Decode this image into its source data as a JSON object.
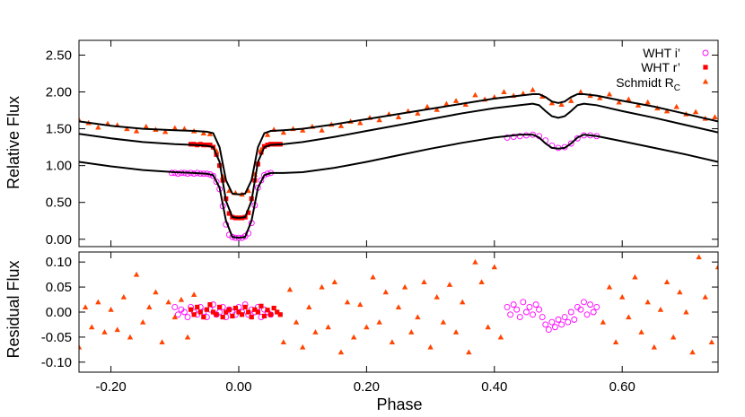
{
  "chart_data": [
    {
      "type": "scatter",
      "panel": "top",
      "ylabel": "Relative Flux",
      "xlim": [
        -0.25,
        0.75
      ],
      "ylim": [
        -0.1,
        2.7
      ],
      "yticks": [
        "0.00",
        "0.50",
        "1.00",
        "1.50",
        "2.00",
        "2.50"
      ],
      "ytick_values": [
        0,
        0.5,
        1.0,
        1.5,
        2.0,
        2.5
      ],
      "grid": false,
      "legend_position": "top-right",
      "legend": [
        {
          "label": "WHT i’",
          "marker": "open-circle",
          "color": "#ff00ff"
        },
        {
          "label": "WHT r’",
          "marker": "filled-square",
          "color": "#ff0000"
        },
        {
          "label": "Schmidt R",
          "sub": "C",
          "marker": "filled-triangle",
          "color": "#ff4500"
        }
      ],
      "model_curves": [
        {
          "name": "Schmidt RC model",
          "color": "#000000",
          "x": [
            -0.25,
            -0.2,
            -0.15,
            -0.1,
            -0.07,
            -0.05,
            -0.04,
            -0.03,
            -0.02,
            -0.01,
            0.0,
            0.01,
            0.02,
            0.03,
            0.04,
            0.05,
            0.07,
            0.1,
            0.15,
            0.2,
            0.25,
            0.3,
            0.35,
            0.4,
            0.44,
            0.46,
            0.47,
            0.48,
            0.49,
            0.5,
            0.51,
            0.52,
            0.53,
            0.54,
            0.56,
            0.6,
            0.65,
            0.7,
            0.75
          ],
          "y": [
            1.6,
            1.54,
            1.5,
            1.48,
            1.47,
            1.46,
            1.44,
            1.25,
            0.8,
            0.62,
            0.61,
            0.62,
            0.8,
            1.25,
            1.44,
            1.47,
            1.48,
            1.5,
            1.56,
            1.63,
            1.7,
            1.77,
            1.84,
            1.91,
            1.95,
            1.97,
            1.97,
            1.93,
            1.87,
            1.85,
            1.87,
            1.93,
            1.97,
            1.97,
            1.95,
            1.88,
            1.8,
            1.7,
            1.6
          ]
        },
        {
          "name": "WHT r’ model",
          "color": "#000000",
          "x": [
            -0.25,
            -0.2,
            -0.15,
            -0.1,
            -0.07,
            -0.05,
            -0.04,
            -0.03,
            -0.02,
            -0.01,
            0.0,
            0.01,
            0.02,
            0.03,
            0.04,
            0.05,
            0.07,
            0.1,
            0.15,
            0.2,
            0.25,
            0.3,
            0.35,
            0.4,
            0.44,
            0.46,
            0.47,
            0.48,
            0.49,
            0.5,
            0.51,
            0.52,
            0.53,
            0.54,
            0.56,
            0.6,
            0.65,
            0.7,
            0.75
          ],
          "y": [
            1.43,
            1.37,
            1.32,
            1.29,
            1.28,
            1.27,
            1.25,
            1.05,
            0.52,
            0.3,
            0.29,
            0.3,
            0.52,
            1.05,
            1.25,
            1.28,
            1.29,
            1.32,
            1.39,
            1.47,
            1.55,
            1.63,
            1.71,
            1.78,
            1.82,
            1.84,
            1.82,
            1.74,
            1.67,
            1.65,
            1.67,
            1.74,
            1.82,
            1.84,
            1.82,
            1.74,
            1.65,
            1.55,
            1.45
          ]
        },
        {
          "name": "WHT i’ model",
          "color": "#000000",
          "x": [
            -0.25,
            -0.2,
            -0.15,
            -0.1,
            -0.07,
            -0.05,
            -0.04,
            -0.03,
            -0.02,
            -0.01,
            0.0,
            0.01,
            0.02,
            0.03,
            0.04,
            0.05,
            0.07,
            0.1,
            0.15,
            0.2,
            0.25,
            0.3,
            0.35,
            0.4,
            0.44,
            0.46,
            0.47,
            0.48,
            0.49,
            0.5,
            0.51,
            0.52,
            0.53,
            0.54,
            0.56,
            0.6,
            0.65,
            0.7,
            0.75
          ],
          "y": [
            1.05,
            0.99,
            0.94,
            0.91,
            0.9,
            0.89,
            0.87,
            0.7,
            0.25,
            0.03,
            0.02,
            0.03,
            0.25,
            0.7,
            0.87,
            0.9,
            0.9,
            0.91,
            0.97,
            1.05,
            1.14,
            1.23,
            1.31,
            1.38,
            1.42,
            1.42,
            1.38,
            1.3,
            1.24,
            1.23,
            1.24,
            1.3,
            1.38,
            1.42,
            1.4,
            1.33,
            1.24,
            1.15,
            1.05
          ]
        }
      ],
      "series": [
        {
          "name": "WHT i’",
          "marker": "open-circle",
          "color": "#ff00ff",
          "x": [
            -0.105,
            -0.1,
            -0.095,
            -0.09,
            -0.085,
            -0.08,
            -0.075,
            -0.07,
            -0.065,
            -0.06,
            -0.055,
            -0.05,
            -0.045,
            -0.04,
            -0.035,
            -0.03,
            -0.025,
            -0.02,
            -0.015,
            -0.01,
            -0.005,
            0.0,
            0.005,
            0.01,
            0.015,
            0.02,
            0.025,
            0.03,
            0.035,
            0.04,
            0.045,
            0.05,
            0.42,
            0.43,
            0.44,
            0.45,
            0.46,
            0.47,
            0.48,
            0.49,
            0.5,
            0.51,
            0.52,
            0.53,
            0.54,
            0.55,
            0.56
          ],
          "y": [
            0.9,
            0.9,
            0.89,
            0.9,
            0.9,
            0.89,
            0.9,
            0.89,
            0.9,
            0.89,
            0.89,
            0.89,
            0.88,
            0.86,
            0.78,
            0.68,
            0.45,
            0.2,
            0.06,
            0.03,
            0.02,
            0.02,
            0.02,
            0.04,
            0.08,
            0.22,
            0.46,
            0.7,
            0.8,
            0.87,
            0.89,
            0.9,
            1.38,
            1.39,
            1.4,
            1.41,
            1.42,
            1.4,
            1.34,
            1.27,
            1.24,
            1.25,
            1.3,
            1.37,
            1.41,
            1.41,
            1.4
          ]
        },
        {
          "name": "WHT r’",
          "marker": "filled-square",
          "color": "#ff0000",
          "x": [
            -0.075,
            -0.07,
            -0.065,
            -0.06,
            -0.055,
            -0.05,
            -0.045,
            -0.04,
            -0.035,
            -0.03,
            -0.025,
            -0.02,
            -0.015,
            -0.01,
            -0.005,
            0.0,
            0.005,
            0.01,
            0.015,
            0.02,
            0.025,
            0.03,
            0.035,
            0.04,
            0.045,
            0.05,
            0.055,
            0.06,
            0.065
          ],
          "y": [
            1.29,
            1.29,
            1.28,
            1.29,
            1.28,
            1.28,
            1.28,
            1.25,
            1.15,
            1.0,
            0.8,
            0.55,
            0.35,
            0.3,
            0.29,
            0.29,
            0.29,
            0.3,
            0.36,
            0.55,
            0.8,
            1.02,
            1.18,
            1.26,
            1.28,
            1.29,
            1.29,
            1.29,
            1.29
          ]
        },
        {
          "name": "Schmidt R_C",
          "marker": "filled-triangle",
          "color": "#ff4500",
          "x": [
            -0.25,
            -0.235,
            -0.22,
            -0.205,
            -0.19,
            -0.175,
            -0.16,
            -0.145,
            -0.13,
            -0.115,
            -0.1,
            -0.085,
            -0.07,
            -0.055,
            -0.045,
            -0.035,
            -0.025,
            -0.015,
            -0.005,
            0.005,
            0.015,
            0.025,
            0.035,
            0.045,
            0.055,
            0.07,
            0.085,
            0.1,
            0.115,
            0.13,
            0.145,
            0.16,
            0.175,
            0.19,
            0.205,
            0.22,
            0.235,
            0.25,
            0.265,
            0.28,
            0.295,
            0.31,
            0.325,
            0.34,
            0.355,
            0.37,
            0.385,
            0.4,
            0.415,
            0.43,
            0.445,
            0.46,
            0.475,
            0.49,
            0.505,
            0.52,
            0.535,
            0.55,
            0.565,
            0.58,
            0.595,
            0.61,
            0.625,
            0.64,
            0.655,
            0.67,
            0.685,
            0.7,
            0.715,
            0.73,
            0.745
          ],
          "y": [
            1.62,
            1.58,
            1.52,
            1.57,
            1.55,
            1.5,
            1.47,
            1.53,
            1.49,
            1.46,
            1.51,
            1.5,
            1.47,
            1.44,
            1.43,
            1.2,
            0.85,
            0.66,
            0.63,
            0.61,
            0.66,
            0.88,
            1.22,
            1.42,
            1.49,
            1.45,
            1.5,
            1.48,
            1.53,
            1.48,
            1.56,
            1.54,
            1.6,
            1.58,
            1.65,
            1.62,
            1.7,
            1.66,
            1.74,
            1.71,
            1.8,
            1.76,
            1.84,
            1.88,
            1.83,
            1.96,
            1.9,
            1.93,
            2.0,
            1.95,
            1.98,
            2.03,
            1.94,
            1.85,
            1.83,
            1.88,
            2.0,
            1.95,
            1.92,
            1.97,
            1.86,
            1.9,
            1.82,
            1.86,
            1.78,
            1.74,
            1.8,
            1.7,
            1.73,
            1.64,
            1.66
          ]
        }
      ]
    },
    {
      "type": "scatter",
      "panel": "bottom",
      "xlabel": "Phase",
      "ylabel": "Residual Flux",
      "xlim": [
        -0.25,
        0.75
      ],
      "ylim": [
        -0.12,
        0.12
      ],
      "xticks": [
        "-0.20",
        "0.00",
        "0.20",
        "0.40",
        "0.60"
      ],
      "xtick_values": [
        -0.2,
        0.0,
        0.2,
        0.4,
        0.6
      ],
      "yticks": [
        "-0.10",
        "-0.05",
        "0.00",
        "0.05",
        "0.10"
      ],
      "ytick_values": [
        -0.1,
        -0.05,
        0.0,
        0.05,
        0.1
      ],
      "grid": false,
      "series": [
        {
          "name": "WHT i’",
          "marker": "open-circle",
          "color": "#ff00ff",
          "x": [
            -0.1,
            -0.095,
            -0.09,
            -0.085,
            -0.08,
            -0.075,
            -0.07,
            -0.065,
            -0.06,
            -0.055,
            -0.05,
            -0.045,
            -0.04,
            -0.035,
            -0.03,
            -0.025,
            -0.02,
            -0.015,
            -0.01,
            -0.005,
            0.0,
            0.005,
            0.01,
            0.015,
            0.02,
            0.025,
            0.03,
            0.035,
            0.04,
            0.045,
            0.05,
            0.42,
            0.425,
            0.43,
            0.435,
            0.44,
            0.445,
            0.45,
            0.455,
            0.46,
            0.465,
            0.47,
            0.475,
            0.48,
            0.485,
            0.49,
            0.495,
            0.5,
            0.505,
            0.51,
            0.515,
            0.52,
            0.525,
            0.53,
            0.535,
            0.54,
            0.545,
            0.55,
            0.555,
            0.56
          ],
          "y": [
            0.01,
            -0.005,
            0.005,
            0.0,
            -0.01,
            0.01,
            0.0,
            -0.005,
            0.01,
            0.0,
            -0.01,
            0.005,
            0.015,
            -0.005,
            0.0,
            0.01,
            -0.01,
            0.005,
            0.0,
            -0.005,
            0.01,
            0.0,
            0.015,
            -0.005,
            0.005,
            0.0,
            0.01,
            -0.01,
            0.005,
            0.0,
            -0.005,
            0.01,
            -0.005,
            0.015,
            0.005,
            -0.01,
            0.02,
            0.0,
            0.01,
            -0.005,
            0.015,
            0.005,
            -0.01,
            -0.025,
            -0.035,
            -0.02,
            -0.03,
            -0.015,
            -0.025,
            -0.01,
            -0.02,
            0.0,
            -0.015,
            0.01,
            0.005,
            0.02,
            -0.005,
            0.015,
            0.0,
            0.01
          ]
        },
        {
          "name": "WHT r’",
          "marker": "filled-square",
          "color": "#ff0000",
          "x": [
            -0.075,
            -0.07,
            -0.065,
            -0.06,
            -0.055,
            -0.05,
            -0.045,
            -0.04,
            -0.035,
            -0.03,
            -0.025,
            -0.02,
            -0.015,
            -0.01,
            -0.005,
            0.0,
            0.005,
            0.01,
            0.015,
            0.02,
            0.025,
            0.03,
            0.035,
            0.04,
            0.045,
            0.05,
            0.055,
            0.06,
            0.065
          ],
          "y": [
            0.005,
            -0.005,
            0.01,
            0.0,
            -0.01,
            0.005,
            0.015,
            0.0,
            -0.005,
            0.01,
            -0.01,
            0.0,
            0.005,
            -0.008,
            0.008,
            0.0,
            -0.005,
            0.01,
            0.0,
            -0.01,
            0.005,
            0.0,
            0.012,
            -0.008,
            0.004,
            -0.005,
            0.008,
            0.0,
            -0.005
          ]
        },
        {
          "name": "Schmidt R_C",
          "marker": "filled-triangle",
          "color": "#ff4500",
          "x": [
            -0.25,
            -0.24,
            -0.23,
            -0.22,
            -0.21,
            -0.2,
            -0.19,
            -0.18,
            -0.17,
            -0.16,
            -0.15,
            -0.14,
            -0.13,
            -0.12,
            -0.11,
            -0.1,
            -0.09,
            -0.08,
            -0.07,
            0.07,
            0.08,
            0.09,
            0.1,
            0.11,
            0.12,
            0.13,
            0.14,
            0.15,
            0.16,
            0.17,
            0.18,
            0.19,
            0.2,
            0.21,
            0.22,
            0.23,
            0.24,
            0.25,
            0.26,
            0.27,
            0.28,
            0.29,
            0.3,
            0.31,
            0.32,
            0.33,
            0.34,
            0.35,
            0.36,
            0.37,
            0.38,
            0.39,
            0.4,
            0.41,
            0.57,
            0.58,
            0.59,
            0.6,
            0.61,
            0.62,
            0.63,
            0.64,
            0.65,
            0.66,
            0.67,
            0.68,
            0.69,
            0.7,
            0.71,
            0.72,
            0.73,
            0.74,
            0.75
          ],
          "y": [
            -0.07,
            0.01,
            -0.03,
            0.02,
            -0.04,
            0.005,
            -0.035,
            0.03,
            -0.05,
            0.075,
            -0.02,
            0.01,
            0.04,
            -0.06,
            0.02,
            -0.01,
            0.025,
            -0.05,
            0.035,
            -0.06,
            0.045,
            -0.02,
            -0.07,
            0.01,
            -0.04,
            0.05,
            -0.03,
            0.06,
            -0.08,
            0.02,
            -0.05,
            0.015,
            -0.03,
            0.07,
            -0.02,
            0.04,
            -0.06,
            0.01,
            0.05,
            -0.04,
            -0.01,
            0.06,
            -0.07,
            0.03,
            -0.02,
            0.055,
            -0.04,
            0.02,
            -0.08,
            0.1,
            0.06,
            -0.03,
            0.09,
            -0.05,
            -0.02,
            0.05,
            -0.06,
            0.03,
            -0.01,
            0.07,
            -0.04,
            0.02,
            -0.07,
            0.005,
            0.06,
            -0.05,
            0.04,
            0.0,
            -0.08,
            0.11,
            0.03,
            -0.06,
            0.09
          ]
        }
      ]
    }
  ]
}
